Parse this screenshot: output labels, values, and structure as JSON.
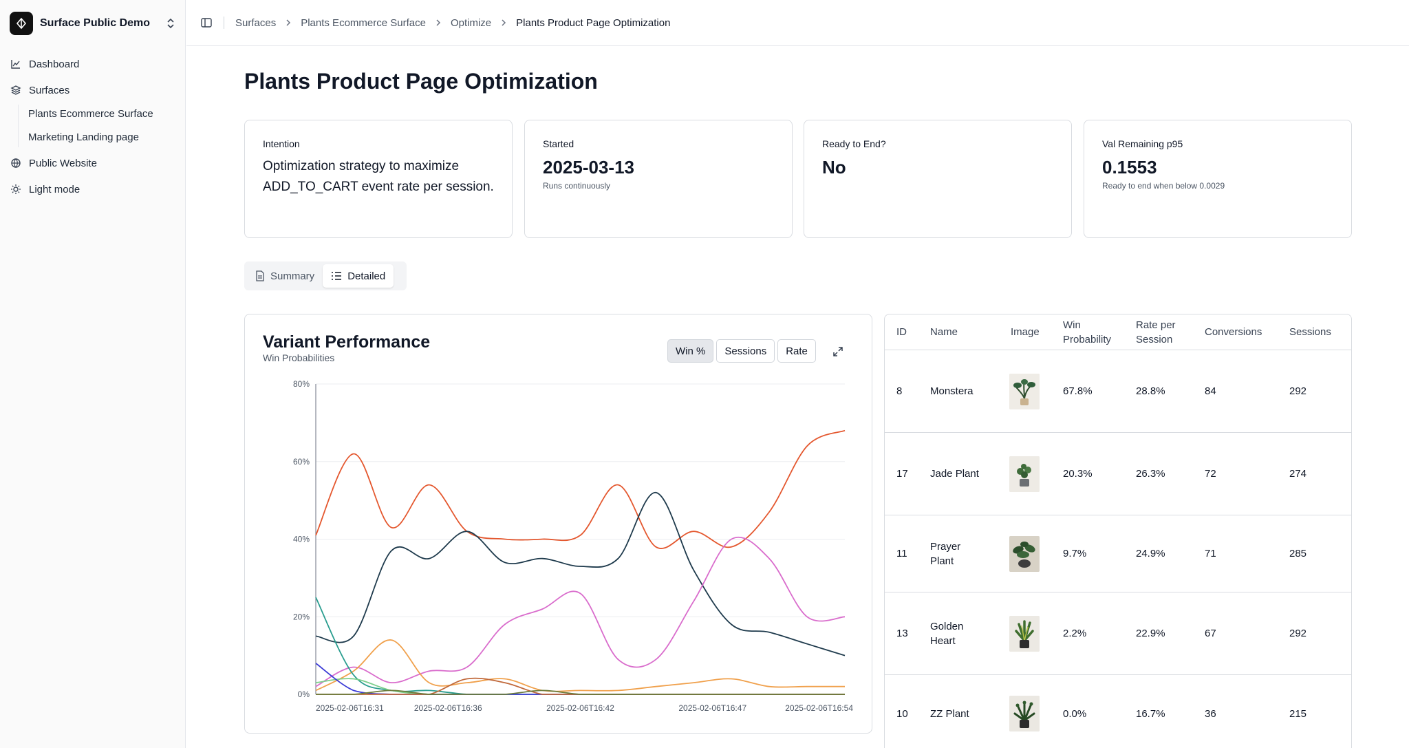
{
  "sidebar": {
    "brand": "Surface Public Demo",
    "items": [
      {
        "label": "Dashboard",
        "icon": "chart-line-icon"
      },
      {
        "label": "Surfaces",
        "icon": "layers-icon"
      },
      {
        "label": "Public Website",
        "icon": "globe-icon"
      },
      {
        "label": "Light mode",
        "icon": "sun-icon"
      }
    ],
    "subitems": [
      "Plants Ecommerce Surface",
      "Marketing Landing page"
    ]
  },
  "breadcrumb": [
    "Surfaces",
    "Plants Ecommerce Surface",
    "Optimize",
    "Plants Product Page Optimization"
  ],
  "page": {
    "title": "Plants Product Page Optimization"
  },
  "cards": {
    "intention": {
      "label": "Intention",
      "text": "Optimization strategy to maximize ADD_TO_CART event rate per session."
    },
    "started": {
      "label": "Started",
      "value": "2025-03-13",
      "note": "Runs continuously"
    },
    "ready": {
      "label": "Ready to End?",
      "value": "No"
    },
    "val": {
      "label": "Val Remaining p95",
      "value": "0.1553",
      "note": "Ready to end when below 0.0029"
    }
  },
  "tabs": {
    "summary": "Summary",
    "detailed": "Detailed",
    "active": "Detailed"
  },
  "chart": {
    "title": "Variant Performance",
    "subtitle": "Win Probabilities",
    "buttons": [
      "Win %",
      "Sessions",
      "Rate"
    ],
    "active_button": "Win %"
  },
  "chart_data": {
    "type": "line",
    "title": "Variant Performance",
    "subtitle": "Win Probabilities",
    "ylim": [
      0,
      80
    ],
    "yticks": [
      "0%",
      "20%",
      "40%",
      "60%",
      "80%"
    ],
    "xticks": [
      "2025-02-06T16:31",
      "2025-02-06T16:36",
      "2025-02-06T16:42",
      "2025-02-06T16:47",
      "2025-02-06T16:54"
    ],
    "grid": true,
    "series": [
      {
        "color": "#e4572e",
        "values": [
          41,
          62,
          43,
          54,
          42,
          40,
          40,
          41,
          54,
          38,
          42,
          38,
          47,
          64,
          68
        ]
      },
      {
        "color": "#1e3a4c",
        "values": [
          15,
          15,
          37,
          35,
          42,
          34,
          35,
          33,
          35,
          52,
          32,
          18,
          16,
          13,
          10
        ]
      },
      {
        "color": "#d96ccc",
        "values": [
          2,
          7,
          3,
          6,
          7,
          18,
          22,
          26,
          9,
          9,
          24,
          40,
          35,
          20,
          20
        ]
      },
      {
        "color": "#f0a04b",
        "values": [
          1,
          6,
          14,
          3,
          3,
          4,
          1,
          1,
          1,
          2,
          3,
          4,
          2,
          2,
          2
        ]
      },
      {
        "color": "#2a9d8f",
        "values": [
          25,
          5,
          1,
          1,
          0,
          0,
          0,
          0,
          0,
          0,
          0,
          0,
          0,
          0,
          0
        ]
      },
      {
        "color": "#7ccf8b",
        "values": [
          3,
          4,
          1,
          0,
          0,
          0,
          0,
          0,
          0,
          0,
          0,
          0,
          0,
          0,
          0
        ]
      },
      {
        "color": "#3b3bd6",
        "values": [
          8,
          1,
          0,
          0,
          0,
          0,
          0,
          0,
          0,
          0,
          0,
          0,
          0,
          0,
          0
        ]
      },
      {
        "color": "#c0683a",
        "values": [
          0,
          0,
          0,
          0,
          4,
          3,
          0,
          0,
          0,
          0,
          0,
          0,
          0,
          0,
          0
        ]
      },
      {
        "color": "#6b7b3a",
        "values": [
          0,
          0,
          1,
          0,
          0,
          0,
          1,
          0,
          0,
          0,
          0,
          0,
          0,
          0,
          0
        ]
      }
    ]
  },
  "table": {
    "headers": [
      "ID",
      "Name",
      "Image",
      "Win Probability",
      "Rate per Session",
      "Conversions",
      "Sessions"
    ],
    "rows": [
      {
        "id": "8",
        "name": "Monstera",
        "win": "67.8%",
        "rate": "28.8%",
        "conversions": "84",
        "sessions": "292"
      },
      {
        "id": "17",
        "name": "Jade Plant",
        "win": "20.3%",
        "rate": "26.3%",
        "conversions": "72",
        "sessions": "274"
      },
      {
        "id": "11",
        "name": "Prayer Plant",
        "win": "9.7%",
        "rate": "24.9%",
        "conversions": "71",
        "sessions": "285"
      },
      {
        "id": "13",
        "name": "Golden Heart",
        "win": "2.2%",
        "rate": "22.9%",
        "conversions": "67",
        "sessions": "292"
      },
      {
        "id": "10",
        "name": "ZZ Plant",
        "win": "0.0%",
        "rate": "16.7%",
        "conversions": "36",
        "sessions": "215"
      }
    ]
  }
}
